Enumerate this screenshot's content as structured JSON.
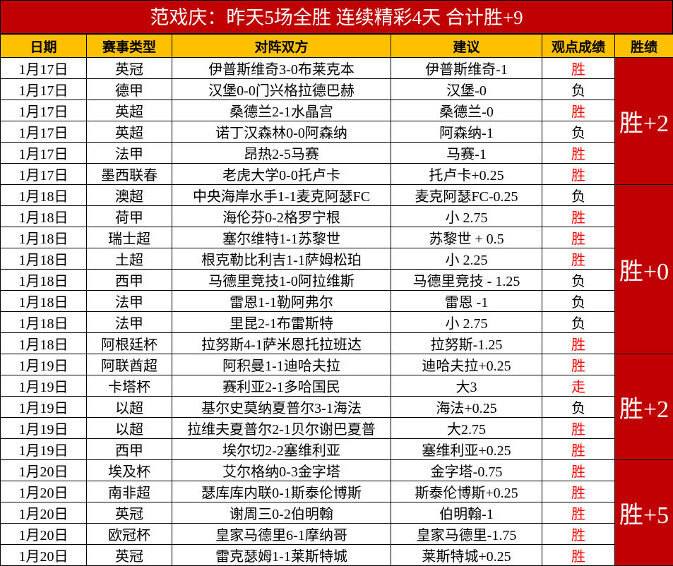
{
  "title": "范戏庆：昨天5场全胜 连续精彩4天 合计胜+9",
  "header": [
    "日期",
    "赛事类型",
    "对阵双方",
    "建议",
    "观点成绩",
    "胜绩"
  ],
  "groups": [
    {
      "summary": "胜+2",
      "rows": [
        {
          "date": "1月17日",
          "type": "英冠",
          "match": "伊普斯维奇3-0布莱克本",
          "tip": "伊普斯维奇-1",
          "result": "胜",
          "result_color": "#ff0000"
        },
        {
          "date": "1月17日",
          "type": "德甲",
          "match": "汉堡0-0门兴格拉德巴赫",
          "tip": "汉堡-0",
          "result": "负",
          "result_color": "#000000"
        },
        {
          "date": "1月17日",
          "type": "英超",
          "match": "桑德兰2-1水晶宫",
          "tip": "桑德兰-0",
          "result": "胜",
          "result_color": "#ff0000"
        },
        {
          "date": "1月17日",
          "type": "英超",
          "match": "诺丁汉森林0-0阿森纳",
          "tip": "阿森纳-1",
          "result": "负",
          "result_color": "#000000"
        },
        {
          "date": "1月17日",
          "type": "法甲",
          "match": "昂热2-5马赛",
          "tip": "马赛-1",
          "result": "胜",
          "result_color": "#ff0000"
        },
        {
          "date": "1月17日",
          "type": "墨西联春",
          "match": "老虎大学0-0托卢卡",
          "tip": "托卢卡+0.25",
          "result": "胜",
          "result_color": "#ff0000"
        }
      ]
    },
    {
      "summary": "胜+0",
      "rows": [
        {
          "date": "1月18日",
          "type": "澳超",
          "match": "中央海岸水手1-1麦克阿瑟FC",
          "tip": "麦克阿瑟FC-0.25",
          "result": "负",
          "result_color": "#000000"
        },
        {
          "date": "1月18日",
          "type": "荷甲",
          "match": "海伦芬0-2格罗宁根",
          "tip": "小 2.75",
          "result": "胜",
          "result_color": "#ff0000"
        },
        {
          "date": "1月18日",
          "type": "瑞士超",
          "match": "塞尔维特1-1苏黎世",
          "tip": "苏黎世 + 0.5",
          "result": "胜",
          "result_color": "#ff0000"
        },
        {
          "date": "1月18日",
          "type": "土超",
          "match": "根克勒比利吉1-1萨姆松珀",
          "tip": "小 2.25",
          "result": "胜",
          "result_color": "#ff0000"
        },
        {
          "date": "1月18日",
          "type": "西甲",
          "match": "马德里竞技1-0阿拉维斯",
          "tip": "马德里竞技 - 1.25",
          "result": "负",
          "result_color": "#000000"
        },
        {
          "date": "1月18日",
          "type": "法甲",
          "match": "雷恩1-1勒阿弗尔",
          "tip": "雷恩 -1",
          "result": "负",
          "result_color": "#000000"
        },
        {
          "date": "1月18日",
          "type": "法甲",
          "match": "里昆2-1布雷斯特",
          "tip": "小 2.75",
          "result": "负",
          "result_color": "#000000"
        },
        {
          "date": "1月18日",
          "type": "阿根廷杯",
          "match": "拉努斯4-1萨米恩托拉班达",
          "tip": "拉努斯-1.25",
          "result": "胜",
          "result_color": "#ff0000"
        }
      ]
    },
    {
      "summary": "胜+2",
      "rows": [
        {
          "date": "1月19日",
          "type": "阿联酋超",
          "match": "阿积曼1-1迪哈夫拉",
          "tip": "迪哈夫拉+0.25",
          "result": "胜",
          "result_color": "#ff0000"
        },
        {
          "date": "1月19日",
          "type": "卡塔杯",
          "match": "赛利亚2-1多哈国民",
          "tip": "大3",
          "result": "走",
          "result_color": "#ff0000"
        },
        {
          "date": "1月19日",
          "type": "以超",
          "match": "基尔史莫纳夏普尔3-1海法",
          "tip": "海法+0.25",
          "result": "负",
          "result_color": "#000000"
        },
        {
          "date": "1月19日",
          "type": "以超",
          "match": "拉维夫夏普尔2-1贝尔谢巴夏普",
          "tip": "大2.75",
          "result": "胜",
          "result_color": "#ff0000"
        },
        {
          "date": "1月19日",
          "type": "西甲",
          "match": "埃尔切2-2塞维利亚",
          "tip": "塞维利亚+0.25",
          "result": "胜",
          "result_color": "#ff0000"
        }
      ]
    },
    {
      "summary": "胜+5",
      "rows": [
        {
          "date": "1月20日",
          "type": "埃及杯",
          "match": "艾尔格纳0-3金字塔",
          "tip": "金字塔-0.75",
          "result": "胜",
          "result_color": "#ff0000"
        },
        {
          "date": "1月20日",
          "type": "南非超",
          "match": "瑟库库内联0-1斯泰伦博斯",
          "tip": "斯泰伦博斯+0.25",
          "result": "胜",
          "result_color": "#ff0000"
        },
        {
          "date": "1月20日",
          "type": "英冠",
          "match": "谢周三0-2伯明翰",
          "tip": "伯明翰-1",
          "result": "胜",
          "result_color": "#ff0000"
        },
        {
          "date": "1月20日",
          "type": "欧冠杯",
          "match": "皇家马德里6-1摩纳哥",
          "tip": "皇家马德里-1.75",
          "result": "胜",
          "result_color": "#ff0000"
        },
        {
          "date": "1月20日",
          "type": "英冠",
          "match": "雷克瑟姆1-1莱斯特城",
          "tip": "莱斯特城+0.25",
          "result": "胜",
          "result_color": "#ff0000"
        }
      ]
    }
  ]
}
